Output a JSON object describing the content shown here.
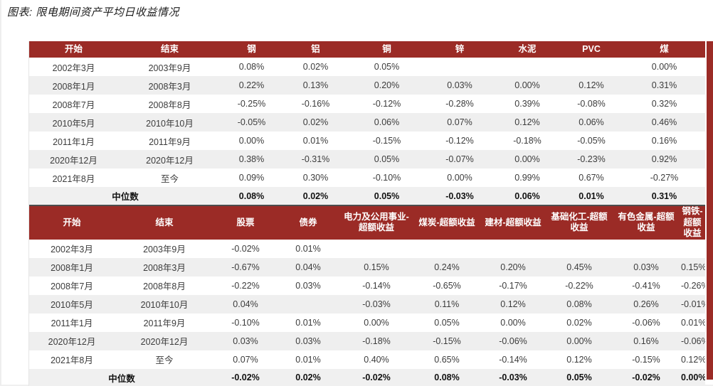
{
  "title": "图表: 限电期间资产平均日收益情况",
  "colors": {
    "header_bg": "#9b2b26",
    "row_alt": "#efefef",
    "median_bg": "#f0f0f0",
    "header_text": "#ffffff"
  },
  "chart_data": [
    {
      "type": "table",
      "name": "限电期间商品资产平均日收益",
      "columns": [
        "开始",
        "结束",
        "钢",
        "铝",
        "铜",
        "锌",
        "水泥",
        "PVC",
        "煤"
      ],
      "rows": [
        [
          "2002年3月",
          "2003年9月",
          "0.08%",
          "0.02%",
          "0.05%",
          "",
          "",
          "",
          "0.00%"
        ],
        [
          "2008年1月",
          "2008年3月",
          "0.22%",
          "0.13%",
          "0.20%",
          "0.03%",
          "0.00%",
          "0.12%",
          "0.31%"
        ],
        [
          "2008年7月",
          "2008年8月",
          "-0.25%",
          "-0.16%",
          "-0.12%",
          "-0.28%",
          "0.39%",
          "-0.08%",
          "0.32%"
        ],
        [
          "2010年5月",
          "2010年10月",
          "-0.05%",
          "0.02%",
          "0.06%",
          "0.07%",
          "0.12%",
          "0.06%",
          "0.46%"
        ],
        [
          "2011年1月",
          "2011年9月",
          "0.00%",
          "0.01%",
          "-0.15%",
          "-0.12%",
          "-0.18%",
          "-0.05%",
          "0.16%"
        ],
        [
          "2020年12月",
          "2020年12月",
          "0.38%",
          "-0.31%",
          "0.05%",
          "-0.07%",
          "0.00%",
          "-0.23%",
          "0.92%"
        ],
        [
          "2021年8月",
          "至今",
          "0.09%",
          "0.30%",
          "-0.10%",
          "0.00%",
          "0.99%",
          "0.67%",
          "-0.27%"
        ]
      ],
      "median": {
        "label": "中位数",
        "values": [
          "0.08%",
          "0.02%",
          "0.05%",
          "-0.03%",
          "0.06%",
          "0.01%",
          "0.31%"
        ]
      }
    },
    {
      "type": "table",
      "name": "限电期间金融资产及行业超额收益平均日收益",
      "columns": [
        "开始",
        "结束",
        "股票",
        "债券",
        "电力及公用事业-超额收益",
        "煤炭-超额收益",
        "建材-超额收益",
        "基础化工-超额收益",
        "有色金属-超额收益",
        "钢铁-超额收益"
      ],
      "rows": [
        [
          "2002年3月",
          "2003年9月",
          "-0.02%",
          "0.01%",
          "",
          "",
          "",
          "",
          "",
          ""
        ],
        [
          "2008年1月",
          "2008年3月",
          "-0.67%",
          "0.04%",
          "0.15%",
          "0.24%",
          "0.20%",
          "0.45%",
          "0.03%",
          "0.15%"
        ],
        [
          "2008年7月",
          "2008年8月",
          "-0.22%",
          "0.03%",
          "-0.14%",
          "-0.65%",
          "-0.17%",
          "-0.22%",
          "-0.41%",
          "-0.26%"
        ],
        [
          "2010年5月",
          "2010年10月",
          "0.04%",
          "",
          "-0.03%",
          "0.11%",
          "0.12%",
          "0.08%",
          "0.26%",
          "-0.01%"
        ],
        [
          "2011年1月",
          "2011年9月",
          "-0.10%",
          "0.01%",
          "0.00%",
          "0.05%",
          "0.00%",
          "0.02%",
          "-0.06%",
          "0.01%"
        ],
        [
          "2020年12月",
          "2020年12月",
          "0.03%",
          "0.03%",
          "-0.18%",
          "-0.15%",
          "-0.06%",
          "0.00%",
          "0.16%",
          "-0.06%"
        ],
        [
          "2021年8月",
          "至今",
          "0.07%",
          "0.01%",
          "0.40%",
          "0.65%",
          "-0.14%",
          "0.12%",
          "-0.15%",
          "0.12%"
        ]
      ],
      "median": {
        "label": "中位数",
        "values": [
          "-0.02%",
          "0.02%",
          "-0.02%",
          "0.08%",
          "-0.03%",
          "0.05%",
          "-0.02%",
          "0.00%"
        ]
      }
    }
  ]
}
